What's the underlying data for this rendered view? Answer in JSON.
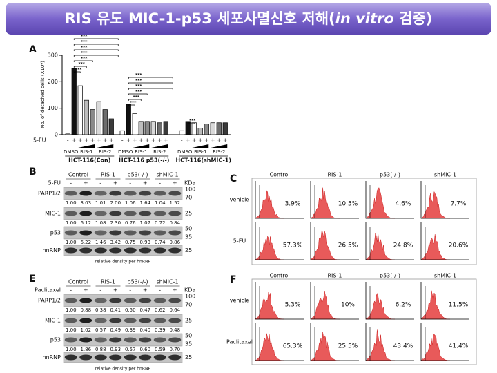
{
  "header": {
    "title_parts": [
      "RIS  유도 MIC-1-p53 세포사멸신호 저해(",
      "in vitro",
      " 검증)"
    ]
  },
  "chart_data": {
    "type": "bar",
    "panel_label": "A",
    "y_label": "No. of detached cells (X10⁴)",
    "treatment_label": "5-FU",
    "ylim": [
      0,
      300
    ],
    "yticks": [
      0,
      100,
      200,
      300
    ],
    "colors": [
      "#ffffff",
      "#111111",
      "#ffffff",
      "#bdbdbd",
      "#8a8a8a",
      "#d9d9d9",
      "#6d6d6d",
      "#3a3a3a"
    ],
    "groups": [
      {
        "name": "HCT-116(Con)",
        "signs": [
          "-",
          "+",
          "+",
          "+",
          "+",
          "+",
          "+",
          "+"
        ],
        "sub_labels": [
          "DMSO",
          "RIS-1",
          "RIS-2"
        ],
        "values": [
          3,
          250,
          185,
          130,
          95,
          125,
          95,
          60
        ],
        "significance": [
          "***",
          "***",
          "***",
          "***",
          "***",
          "***",
          "***"
        ]
      },
      {
        "name": "HCT-116 p53(-/-)",
        "signs": [
          "-",
          "+",
          "+",
          "+",
          "+",
          "+",
          "+",
          "+"
        ],
        "sub_labels": [
          "DMSO",
          "RIS-1",
          "RIS-2"
        ],
        "values": [
          15,
          115,
          80,
          50,
          50,
          50,
          45,
          50
        ],
        "significance": [
          "***",
          "***",
          "***",
          "***",
          "***",
          "***"
        ]
      },
      {
        "name": "HCT-116(shMIC-1)",
        "signs": [
          "-",
          "+",
          "+",
          "+",
          "+",
          "+",
          "+",
          "+"
        ],
        "sub_labels": [
          "DMSO",
          "RIS-1",
          "RIS-2"
        ],
        "values": [
          15,
          50,
          45,
          25,
          40,
          45,
          45,
          45
        ],
        "significance": [
          "***"
        ]
      }
    ]
  },
  "blots": [
    {
      "panel_label": "B",
      "treatment_label": "5-FU",
      "lanes": [
        "Control",
        "RIS-1",
        "p53(-/-)",
        "shMIC-1"
      ],
      "signs": [
        "-",
        "+",
        "-",
        "+",
        "-",
        "+",
        "-",
        "+"
      ],
      "kda_label": "KDa",
      "rows": [
        {
          "name": "PARP1/2",
          "markers": [
            "100",
            "70"
          ],
          "densities": [
            "1.00",
            "3.03",
            "1.01",
            "2.00",
            "1.06",
            "1.64",
            "1.04",
            "1.52"
          ]
        },
        {
          "name": "MIC-1",
          "markers": [
            "25"
          ],
          "densities": [
            "1.00",
            "6.12",
            "1.08",
            "2.30",
            "0.76",
            "1.07",
            "0.72",
            "0.84"
          ]
        },
        {
          "name": "p53",
          "markers": [
            "50",
            "35"
          ],
          "densities": [
            "1.00",
            "6.22",
            "1.46",
            "3.42",
            "0.75",
            "0.93",
            "0.74",
            "0.86"
          ]
        },
        {
          "name": "hnRNP",
          "markers": [
            "25"
          ],
          "densities": []
        }
      ],
      "caption": "relative density per hnRNP"
    },
    {
      "panel_label": "E",
      "treatment_label": "Paclitaxel",
      "lanes": [
        "Control",
        "RIS-1",
        "p53(-/-)",
        "shMIC-1"
      ],
      "signs": [
        "-",
        "+",
        "-",
        "+",
        "-",
        "+",
        "-",
        "+"
      ],
      "kda_label": "KDa",
      "rows": [
        {
          "name": "PARP1/2",
          "markers": [
            "100",
            "70"
          ],
          "densities": [
            "1.00",
            "0.88",
            "0.38",
            "0.41",
            "0.50",
            "0.47",
            "0.62",
            "0.64"
          ]
        },
        {
          "name": "MIC-1",
          "markers": [
            "25"
          ],
          "densities": [
            "1.00",
            "1.02",
            "0.57",
            "0.49",
            "0.39",
            "0.40",
            "0.39",
            "0.48"
          ]
        },
        {
          "name": "p53",
          "markers": [
            "50",
            "35"
          ],
          "densities": [
            "1.00",
            "1.86",
            "0.88",
            "0.93",
            "0.57",
            "0.60",
            "0.59",
            "0.70"
          ]
        },
        {
          "name": "hnRNP",
          "markers": [
            "25"
          ],
          "densities": []
        }
      ],
      "caption": "relative density per hnRNP"
    }
  ],
  "flow": [
    {
      "panel_label": "C",
      "columns": [
        "Control",
        "RIS-1",
        "p53(-/-)",
        "shMIC-1"
      ],
      "rows": [
        {
          "name": "vehicle",
          "values": [
            "3.9%",
            "10.5%",
            "4.6%",
            "7.7%"
          ]
        },
        {
          "name": "5-FU",
          "values": [
            "57.3%",
            "26.5%",
            "24.8%",
            "20.6%"
          ]
        }
      ]
    },
    {
      "panel_label": "F",
      "columns": [
        "Control",
        "RIS-1",
        "p53(-/-)",
        "shMIC-1"
      ],
      "rows": [
        {
          "name": "vehicle",
          "values": [
            "5.3%",
            "10%",
            "6.2%",
            "11.5%"
          ]
        },
        {
          "name": "Paclitaxel",
          "values": [
            "65.3%",
            "25.5%",
            "43.4%",
            "41.4%"
          ]
        }
      ]
    }
  ]
}
